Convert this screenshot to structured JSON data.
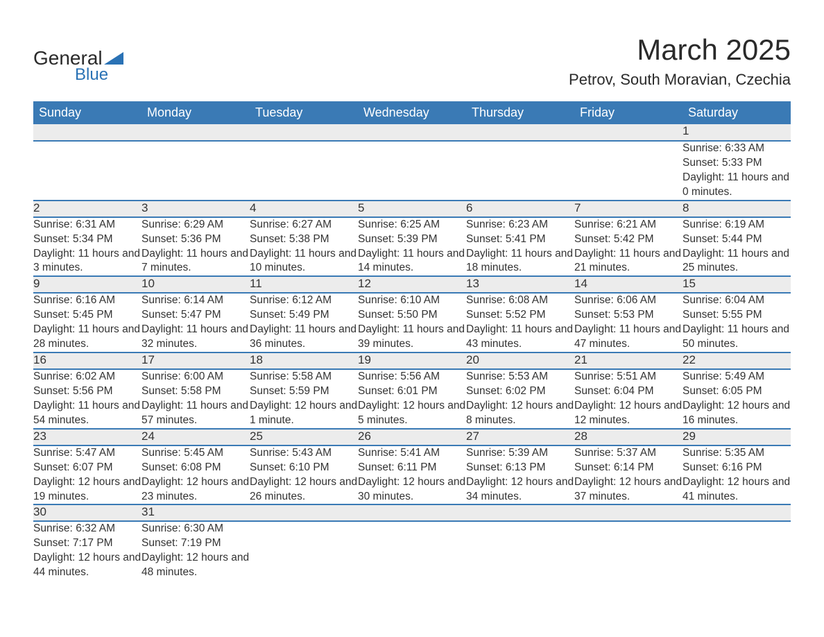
{
  "logo": {
    "line1": "General",
    "line2": "Blue"
  },
  "title": "March 2025",
  "location": "Petrov, South Moravian, Czechia",
  "weekday_labels": [
    "Sunday",
    "Monday",
    "Tuesday",
    "Wednesday",
    "Thursday",
    "Friday",
    "Saturday"
  ],
  "colors": {
    "header_bg": "#3a7ab5",
    "header_text": "#ffffff",
    "daynum_bg": "#ececec",
    "row_divider": "#3a7ab5",
    "body_text": "#333333",
    "logo_accent": "#2a72b5"
  },
  "typography": {
    "title_fontsize": 42,
    "location_fontsize": 22,
    "weekday_fontsize": 18,
    "daynum_fontsize": 17,
    "body_fontsize": 15.5
  },
  "days": {
    "1": {
      "sunrise": "6:33 AM",
      "sunset": "5:33 PM",
      "daylight": "11 hours and 0 minutes."
    },
    "2": {
      "sunrise": "6:31 AM",
      "sunset": "5:34 PM",
      "daylight": "11 hours and 3 minutes."
    },
    "3": {
      "sunrise": "6:29 AM",
      "sunset": "5:36 PM",
      "daylight": "11 hours and 7 minutes."
    },
    "4": {
      "sunrise": "6:27 AM",
      "sunset": "5:38 PM",
      "daylight": "11 hours and 10 minutes."
    },
    "5": {
      "sunrise": "6:25 AM",
      "sunset": "5:39 PM",
      "daylight": "11 hours and 14 minutes."
    },
    "6": {
      "sunrise": "6:23 AM",
      "sunset": "5:41 PM",
      "daylight": "11 hours and 18 minutes."
    },
    "7": {
      "sunrise": "6:21 AM",
      "sunset": "5:42 PM",
      "daylight": "11 hours and 21 minutes."
    },
    "8": {
      "sunrise": "6:19 AM",
      "sunset": "5:44 PM",
      "daylight": "11 hours and 25 minutes."
    },
    "9": {
      "sunrise": "6:16 AM",
      "sunset": "5:45 PM",
      "daylight": "11 hours and 28 minutes."
    },
    "10": {
      "sunrise": "6:14 AM",
      "sunset": "5:47 PM",
      "daylight": "11 hours and 32 minutes."
    },
    "11": {
      "sunrise": "6:12 AM",
      "sunset": "5:49 PM",
      "daylight": "11 hours and 36 minutes."
    },
    "12": {
      "sunrise": "6:10 AM",
      "sunset": "5:50 PM",
      "daylight": "11 hours and 39 minutes."
    },
    "13": {
      "sunrise": "6:08 AM",
      "sunset": "5:52 PM",
      "daylight": "11 hours and 43 minutes."
    },
    "14": {
      "sunrise": "6:06 AM",
      "sunset": "5:53 PM",
      "daylight": "11 hours and 47 minutes."
    },
    "15": {
      "sunrise": "6:04 AM",
      "sunset": "5:55 PM",
      "daylight": "11 hours and 50 minutes."
    },
    "16": {
      "sunrise": "6:02 AM",
      "sunset": "5:56 PM",
      "daylight": "11 hours and 54 minutes."
    },
    "17": {
      "sunrise": "6:00 AM",
      "sunset": "5:58 PM",
      "daylight": "11 hours and 57 minutes."
    },
    "18": {
      "sunrise": "5:58 AM",
      "sunset": "5:59 PM",
      "daylight": "12 hours and 1 minute."
    },
    "19": {
      "sunrise": "5:56 AM",
      "sunset": "6:01 PM",
      "daylight": "12 hours and 5 minutes."
    },
    "20": {
      "sunrise": "5:53 AM",
      "sunset": "6:02 PM",
      "daylight": "12 hours and 8 minutes."
    },
    "21": {
      "sunrise": "5:51 AM",
      "sunset": "6:04 PM",
      "daylight": "12 hours and 12 minutes."
    },
    "22": {
      "sunrise": "5:49 AM",
      "sunset": "6:05 PM",
      "daylight": "12 hours and 16 minutes."
    },
    "23": {
      "sunrise": "5:47 AM",
      "sunset": "6:07 PM",
      "daylight": "12 hours and 19 minutes."
    },
    "24": {
      "sunrise": "5:45 AM",
      "sunset": "6:08 PM",
      "daylight": "12 hours and 23 minutes."
    },
    "25": {
      "sunrise": "5:43 AM",
      "sunset": "6:10 PM",
      "daylight": "12 hours and 26 minutes."
    },
    "26": {
      "sunrise": "5:41 AM",
      "sunset": "6:11 PM",
      "daylight": "12 hours and 30 minutes."
    },
    "27": {
      "sunrise": "5:39 AM",
      "sunset": "6:13 PM",
      "daylight": "12 hours and 34 minutes."
    },
    "28": {
      "sunrise": "5:37 AM",
      "sunset": "6:14 PM",
      "daylight": "12 hours and 37 minutes."
    },
    "29": {
      "sunrise": "5:35 AM",
      "sunset": "6:16 PM",
      "daylight": "12 hours and 41 minutes."
    },
    "30": {
      "sunrise": "6:32 AM",
      "sunset": "7:17 PM",
      "daylight": "12 hours and 44 minutes."
    },
    "31": {
      "sunrise": "6:30 AM",
      "sunset": "7:19 PM",
      "daylight": "12 hours and 48 minutes."
    }
  },
  "labels": {
    "sunrise": "Sunrise:",
    "sunset": "Sunset:",
    "daylight_prefix": "Daylight:"
  },
  "weeks": [
    [
      null,
      null,
      null,
      null,
      null,
      null,
      "1"
    ],
    [
      "2",
      "3",
      "4",
      "5",
      "6",
      "7",
      "8"
    ],
    [
      "9",
      "10",
      "11",
      "12",
      "13",
      "14",
      "15"
    ],
    [
      "16",
      "17",
      "18",
      "19",
      "20",
      "21",
      "22"
    ],
    [
      "23",
      "24",
      "25",
      "26",
      "27",
      "28",
      "29"
    ],
    [
      "30",
      "31",
      null,
      null,
      null,
      null,
      null
    ]
  ]
}
